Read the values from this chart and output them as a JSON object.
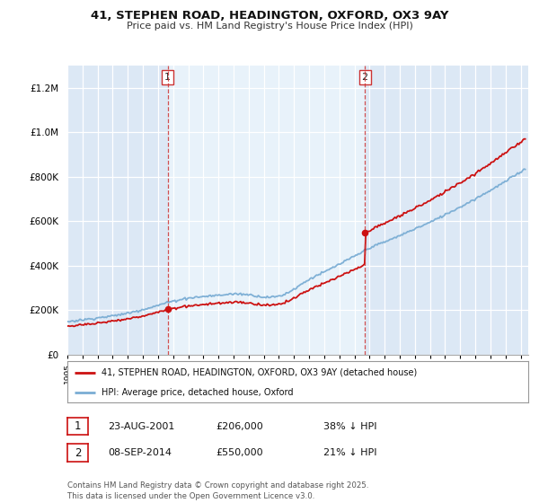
{
  "title_line1": "41, STEPHEN ROAD, HEADINGTON, OXFORD, OX3 9AY",
  "title_line2": "Price paid vs. HM Land Registry's House Price Index (HPI)",
  "ylim": [
    0,
    1300000
  ],
  "xlim_start": 1995.0,
  "xlim_end": 2025.5,
  "plot_bg_color": "#dce8f5",
  "shade_color": "#e8f2fa",
  "hpi_color": "#7aadd4",
  "price_color": "#cc1111",
  "transaction1_date": 2001.64,
  "transaction1_price": 206000,
  "transaction2_date": 2014.69,
  "transaction2_price": 550000,
  "legend_label_price": "41, STEPHEN ROAD, HEADINGTON, OXFORD, OX3 9AY (detached house)",
  "legend_label_hpi": "HPI: Average price, detached house, Oxford",
  "note1_date": "23-AUG-2001",
  "note1_price": "£206,000",
  "note1_detail": "38% ↓ HPI",
  "note2_date": "08-SEP-2014",
  "note2_price": "£550,000",
  "note2_detail": "21% ↓ HPI",
  "footer": "Contains HM Land Registry data © Crown copyright and database right 2025.\nThis data is licensed under the Open Government Licence v3.0."
}
